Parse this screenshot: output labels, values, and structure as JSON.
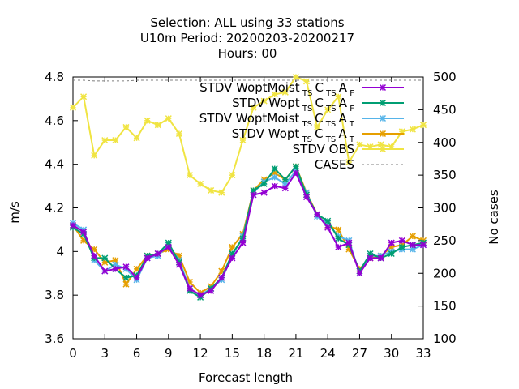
{
  "chart_data": {
    "type": "line",
    "title_lines": [
      "Selection: ALL using    33 stations",
      "U10m   Period: 20200203-20200217",
      "Hours:  00"
    ],
    "xlabel": "Forecast length",
    "ylabel": "m/s",
    "y2label": "No cases",
    "xlim": [
      0,
      33
    ],
    "ylim": [
      3.6,
      4.8
    ],
    "y2lim": [
      100,
      500
    ],
    "xticks": [
      "0",
      "3",
      "6",
      "9",
      "12",
      "15",
      "18",
      "21",
      "24",
      "27",
      "30",
      "33"
    ],
    "yticks": [
      "3.6",
      "3.8",
      "4",
      "4.2",
      "4.4",
      "4.6",
      "4.8"
    ],
    "y2ticks": [
      "100",
      "150",
      "200",
      "250",
      "300",
      "350",
      "400",
      "450",
      "500"
    ],
    "legend_position": "top-right",
    "x": [
      0,
      1,
      2,
      3,
      4,
      5,
      6,
      7,
      8,
      9,
      10,
      11,
      12,
      13,
      14,
      15,
      16,
      17,
      18,
      19,
      20,
      21,
      22,
      23,
      24,
      25,
      26,
      27,
      28,
      29,
      30,
      31,
      32,
      33
    ],
    "series": [
      {
        "name": "STDV WoptMoist_TS C_TS A_F",
        "legend": {
          "a": "STDV WoptMoist",
          "b": "TS",
          "c": "C",
          "d": "TS",
          "e": "A",
          "f": "F"
        },
        "color": "#9400d3",
        "marker": "x-star",
        "axis": "y",
        "values": [
          4.12,
          4.09,
          3.98,
          3.91,
          3.92,
          3.93,
          3.88,
          3.97,
          3.99,
          4.02,
          3.94,
          3.83,
          3.8,
          3.82,
          3.88,
          3.97,
          4.04,
          4.26,
          4.27,
          4.3,
          4.29,
          4.36,
          4.25,
          4.17,
          4.11,
          4.02,
          4.04,
          3.9,
          3.97,
          3.97,
          4.04,
          4.05,
          4.03,
          4.03
        ]
      },
      {
        "name": "STDV Wopt_TS C_TS A_F",
        "legend": {
          "a": "STDV Wopt",
          "b": "TS",
          "c": "C",
          "d": "TS",
          "e": "A",
          "f": "F"
        },
        "color": "#009e73",
        "marker": "x-star",
        "axis": "y",
        "values": [
          4.11,
          4.08,
          3.97,
          3.97,
          3.92,
          3.88,
          3.89,
          3.98,
          3.99,
          4.04,
          3.95,
          3.82,
          3.79,
          3.83,
          3.88,
          3.99,
          4.06,
          4.28,
          4.31,
          4.38,
          4.33,
          4.39,
          4.26,
          4.17,
          4.14,
          4.06,
          4.03,
          3.91,
          3.99,
          3.97,
          3.99,
          4.02,
          4.03,
          4.04
        ]
      },
      {
        "name": "STDV WoptMoist_TS C_TS A_T",
        "legend": {
          "a": "STDV WoptMoist",
          "b": "TS",
          "c": "C",
          "d": "TS",
          "e": "A",
          "f": "T"
        },
        "color": "#56b4e9",
        "marker": "x-star",
        "axis": "y",
        "values": [
          4.13,
          4.1,
          3.96,
          3.91,
          3.94,
          3.92,
          3.87,
          3.97,
          3.98,
          4.03,
          3.96,
          3.83,
          3.8,
          3.83,
          3.87,
          3.98,
          4.07,
          4.27,
          4.32,
          4.34,
          4.31,
          4.37,
          4.27,
          4.16,
          4.13,
          4.07,
          4.05,
          3.9,
          3.98,
          3.98,
          4.0,
          4.01,
          4.01,
          4.03
        ]
      },
      {
        "name": "STDV Wopt_TS C_TS A_T",
        "legend": {
          "a": "STDV Wopt",
          "b": "TS",
          "c": "C",
          "d": "TS",
          "e": "A",
          "f": "T"
        },
        "color": "#e69f00",
        "marker": "x-star",
        "axis": "y",
        "values": [
          4.12,
          4.05,
          4.01,
          3.95,
          3.96,
          3.85,
          3.92,
          3.98,
          3.99,
          4.01,
          3.98,
          3.86,
          3.81,
          3.84,
          3.91,
          4.02,
          4.08,
          4.28,
          4.33,
          4.36,
          4.33,
          4.39,
          4.27,
          4.17,
          4.12,
          4.1,
          4.01,
          3.92,
          3.97,
          3.98,
          4.02,
          4.03,
          4.07,
          4.05
        ]
      },
      {
        "name": "STDV OBS",
        "legend": {
          "a": "STDV OBS"
        },
        "color": "#f0e442",
        "marker": "x-star",
        "axis": "y",
        "values": [
          4.66,
          4.71,
          4.44,
          4.51,
          4.51,
          4.57,
          4.52,
          4.6,
          4.58,
          4.61,
          4.54,
          4.35,
          4.31,
          4.28,
          4.27,
          4.35,
          4.51,
          4.66,
          4.69,
          4.72,
          4.73,
          4.8,
          4.78,
          4.57,
          4.65,
          4.71,
          4.41,
          4.49,
          4.48,
          4.49,
          4.48,
          4.55,
          4.56,
          4.58
        ]
      },
      {
        "name": "CASES",
        "legend": {
          "a": "CASES"
        },
        "color": "#7f7f7f",
        "marker": "none",
        "dashed": true,
        "axis": "y2",
        "values": [
          495,
          495,
          494,
          494,
          494,
          494,
          495,
          495,
          495,
          495,
          495,
          495,
          495,
          495,
          495,
          495,
          495,
          495,
          495,
          495,
          495,
          495,
          495,
          495,
          495,
          495,
          495,
          495,
          495,
          495,
          495,
          495,
          495,
          495
        ]
      }
    ]
  }
}
